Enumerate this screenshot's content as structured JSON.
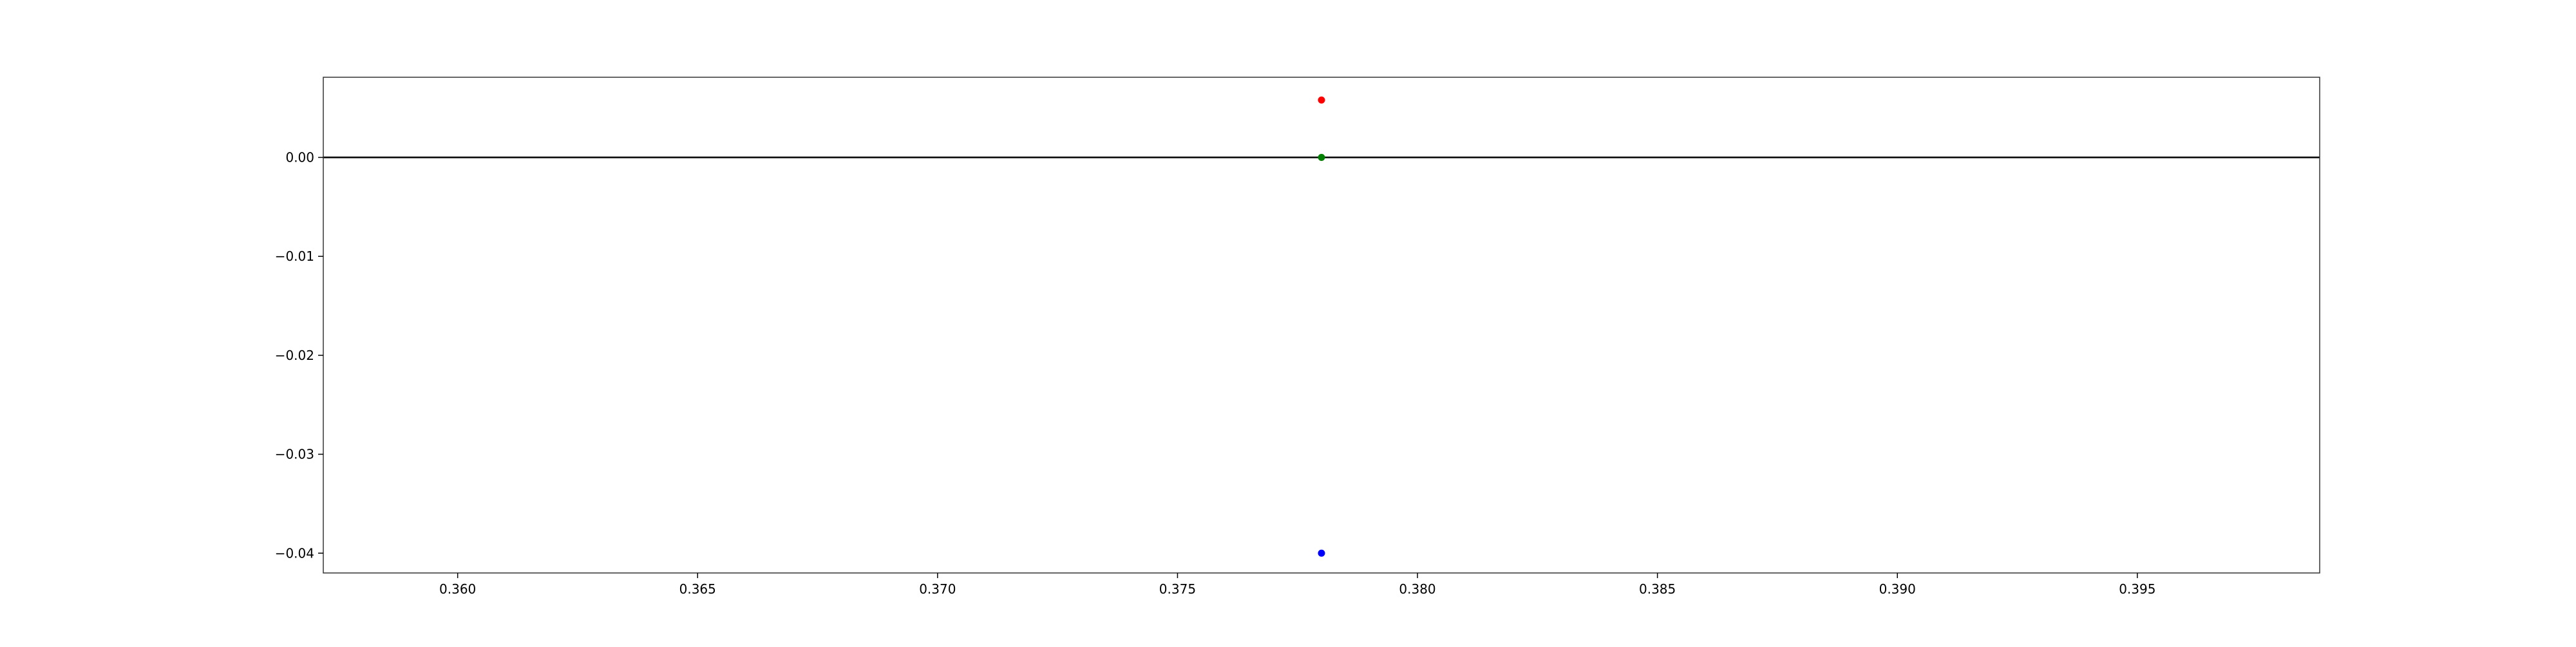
{
  "chart_data": {
    "type": "scatter",
    "title": "",
    "xlabel": "",
    "ylabel": "",
    "xlim": [
      0.3572,
      0.3988
    ],
    "ylim": [
      -0.042,
      0.0081
    ],
    "x_ticks": [
      0.36,
      0.365,
      0.37,
      0.375,
      0.38,
      0.385,
      0.39,
      0.395
    ],
    "x_tick_labels": [
      "0.360",
      "0.365",
      "0.370",
      "0.375",
      "0.380",
      "0.385",
      "0.390",
      "0.395"
    ],
    "y_ticks": [
      0.0,
      -0.01,
      -0.02,
      -0.03,
      -0.04
    ],
    "y_tick_labels": [
      "0.00",
      "−0.01",
      "−0.02",
      "−0.03",
      "−0.04"
    ],
    "grid": false,
    "legend": "none",
    "reference_line": {
      "y": 0.0,
      "color": "#000000"
    },
    "series": [
      {
        "color": "#ff0000",
        "points": [
          {
            "x": 0.378,
            "y": 0.0058
          }
        ]
      },
      {
        "color": "#008000",
        "points": [
          {
            "x": 0.378,
            "y": 0.0
          }
        ]
      },
      {
        "color": "#0000ff",
        "points": [
          {
            "x": 0.378,
            "y": -0.04
          }
        ]
      }
    ]
  }
}
